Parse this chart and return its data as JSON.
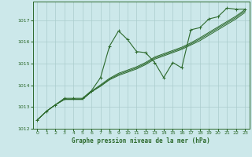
{
  "title": "Graphe pression niveau de la mer (hPa)",
  "bg_color": "#cce8ea",
  "grid_color": "#aacccc",
  "line_color": "#2d6a2d",
  "xlim": [
    -0.5,
    23.5
  ],
  "ylim": [
    1012.0,
    1017.85
  ],
  "xticks": [
    0,
    1,
    2,
    3,
    4,
    5,
    6,
    7,
    8,
    9,
    10,
    11,
    12,
    13,
    14,
    15,
    16,
    17,
    18,
    19,
    20,
    21,
    22,
    23
  ],
  "yticks": [
    1012,
    1013,
    1014,
    1015,
    1016,
    1017
  ],
  "series_main": [
    1012.4,
    1012.8,
    1013.1,
    1013.4,
    1013.4,
    1013.4,
    1013.75,
    1014.35,
    1015.8,
    1016.5,
    1016.1,
    1015.55,
    1015.5,
    1015.05,
    1014.35,
    1015.05,
    1014.8,
    1016.55,
    1016.65,
    1017.05,
    1017.15,
    1017.55,
    1017.5,
    1017.5
  ],
  "series_trend1": [
    1012.4,
    1012.8,
    1013.1,
    1013.35,
    1013.35,
    1013.35,
    1013.7,
    1013.95,
    1014.25,
    1014.45,
    1014.6,
    1014.75,
    1014.95,
    1015.2,
    1015.35,
    1015.5,
    1015.65,
    1015.85,
    1016.05,
    1016.3,
    1016.55,
    1016.8,
    1017.05,
    1017.35
  ],
  "series_trend2": [
    1012.4,
    1012.8,
    1013.1,
    1013.35,
    1013.35,
    1013.35,
    1013.7,
    1013.98,
    1014.28,
    1014.5,
    1014.65,
    1014.8,
    1015.0,
    1015.25,
    1015.4,
    1015.55,
    1015.7,
    1015.9,
    1016.12,
    1016.37,
    1016.62,
    1016.87,
    1017.12,
    1017.42
  ],
  "series_trend3": [
    1012.4,
    1012.8,
    1013.1,
    1013.35,
    1013.35,
    1013.35,
    1013.72,
    1014.02,
    1014.32,
    1014.55,
    1014.7,
    1014.85,
    1015.05,
    1015.3,
    1015.45,
    1015.6,
    1015.75,
    1015.95,
    1016.18,
    1016.43,
    1016.68,
    1016.93,
    1017.18,
    1017.48
  ]
}
